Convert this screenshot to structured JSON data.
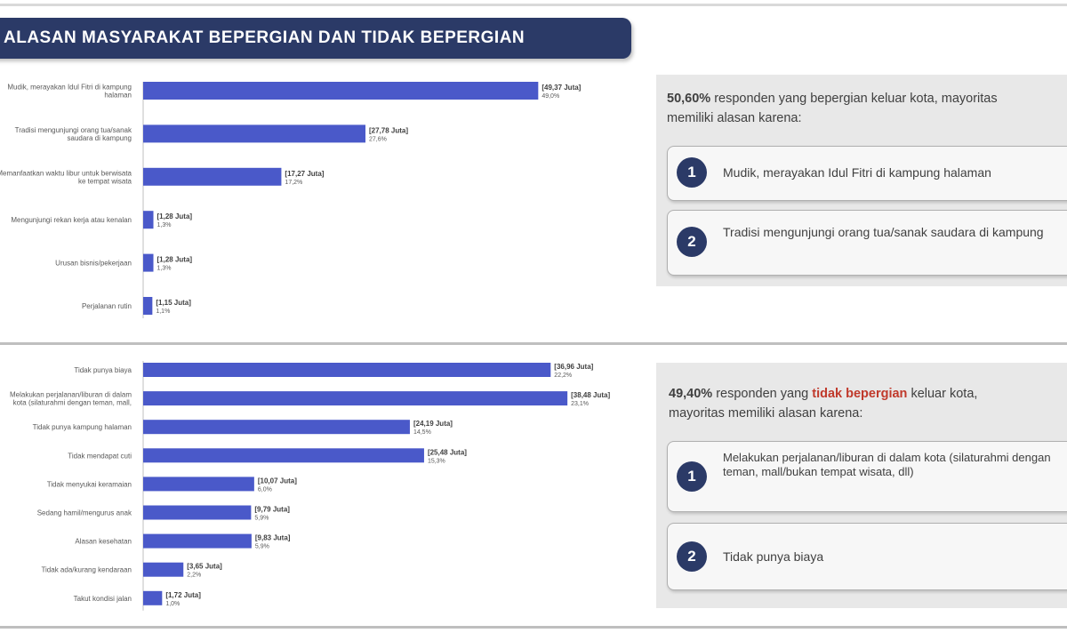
{
  "header": {
    "title": "ALASAN MASYARAKAT BEPERGIAN DAN TIDAK BEPERGIAN"
  },
  "colors": {
    "bar": "#4a59c9",
    "banner": "#2b3a67",
    "highlight": "#c0392b"
  },
  "chart_data": [
    {
      "type": "bar",
      "orientation": "horizontal",
      "categories": [
        "Mudik, merayakan Idul Fitri di kampung halaman",
        "Tradisi mengunjungi orang tua/sanak saudara di kampung",
        "Memanfaatkan waktu libur untuk berwisata ke tempat wisata",
        "Mengunjungi rekan kerja atau kenalan",
        "Urusan bisnis/pekerjaan",
        "Perjalanan rutin"
      ],
      "values": [
        49.37,
        27.78,
        17.27,
        1.28,
        1.28,
        1.15
      ],
      "value_labels": [
        "[49,37 Juta]",
        "[27,78 Juta]",
        "[17,27 Juta]",
        "[1,28 Juta]",
        "[1,28 Juta]",
        "[1,15 Juta]"
      ],
      "pct_labels": [
        "49,0%",
        "27,6%",
        "17,2%",
        "1,3%",
        "1,3%",
        "1,1%"
      ]
    },
    {
      "type": "bar",
      "orientation": "horizontal",
      "categories": [
        "Tidak punya biaya",
        "Melakukan perjalanan/liburan di dalam kota (silaturahmi dengan teman, mall, dll)",
        "Tidak punya kampung halaman",
        "Tidak mendapat cuti",
        "Tidak menyukai keramaian",
        "Sedang hamil/mengurus anak",
        "Alasan kesehatan",
        "Tidak ada/kurang kendaraan",
        "Takut kondisi jalan"
      ],
      "values": [
        36.96,
        38.48,
        24.19,
        25.48,
        10.07,
        9.79,
        9.83,
        3.65,
        1.72
      ],
      "value_labels": [
        "[36,96 Juta]",
        "[38,48 Juta]",
        "[24,19 Juta]",
        "[25,48 Juta]",
        "[10,07 Juta]",
        "[9,79 Juta]",
        "[9,83 Juta]",
        "[3,65 Juta]",
        "[1,72 Juta]"
      ],
      "pct_labels": [
        "22,2%",
        "23,1%",
        "14,5%",
        "15,3%",
        "6,0%",
        "5,9%",
        "5,9%",
        "2,2%",
        "1,0%"
      ]
    }
  ],
  "panels": [
    {
      "intro_bold": "50,60%",
      "intro_rest": " responden yang bepergian keluar kota, mayoritas",
      "intro_line2": "memiliki alasan karena:",
      "reasons": [
        {
          "num": "1",
          "text": "Mudik, merayakan Idul Fitri di kampung halaman"
        },
        {
          "num": "2",
          "text": "Tradisi mengunjungi orang tua/sanak saudara di kampung"
        }
      ]
    },
    {
      "intro_bold": "49,40%",
      "intro_mid": " responden yang ",
      "intro_highlight": "tidak bepergian",
      "intro_rest": " keluar kota,",
      "intro_line2": "mayoritas memiliki alasan karena:",
      "reasons": [
        {
          "num": "1",
          "text": "Melakukan perjalanan/liburan di dalam kota (silaturahmi dengan teman, mall/bukan tempat wisata, dll)"
        },
        {
          "num": "2",
          "text": "Tidak punya biaya"
        }
      ]
    }
  ]
}
